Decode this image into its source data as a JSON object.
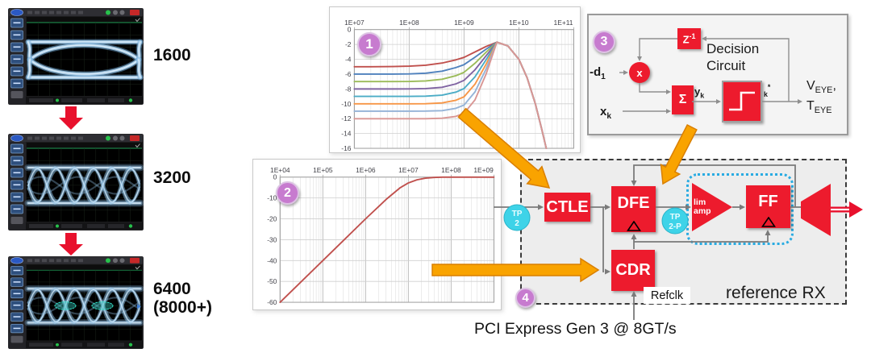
{
  "caption": "PCI Express Gen 3 @ 8GT/s",
  "scopes": [
    {
      "label_lines": [
        "1600"
      ],
      "eye": "open"
    },
    {
      "label_lines": [
        "3200"
      ],
      "eye": "dense"
    },
    {
      "label_lines": [
        "6400",
        "(8000+)"
      ],
      "eye": "dense-marked"
    }
  ],
  "badges": {
    "b1": "1",
    "b2": "2",
    "b3": "3",
    "b4": "4"
  },
  "chart_data": [
    {
      "id": "ctle-frequency-response",
      "type": "line",
      "x_scale": "log",
      "x_tick_labels": [
        "1E+07",
        "1E+08",
        "1E+09",
        "1E+10",
        "1E+11"
      ],
      "x_tick_log10": [
        7,
        8,
        9,
        10,
        11
      ],
      "xlim_log10": [
        7,
        11
      ],
      "y_ticks": [
        0,
        -2,
        -4,
        -6,
        -8,
        -10,
        -12,
        -14,
        -16
      ],
      "ylim": [
        -16,
        0
      ],
      "grid": "log-minor",
      "legend": "none",
      "x_log10": [
        7.0,
        7.3,
        7.7,
        8.0,
        8.3,
        8.6,
        8.85,
        9.0,
        9.2,
        9.4,
        9.6,
        9.8,
        10.0,
        10.15,
        10.3,
        10.42,
        10.5
      ],
      "series": [
        {
          "name": "dc_gain_-5dB",
          "color": "#c0504d",
          "values": [
            -5,
            -5,
            -4.98,
            -4.93,
            -4.8,
            -4.51,
            -4.08,
            -3.75,
            -3.02,
            -2.29,
            -1.7,
            -2.2,
            -4,
            -6.5,
            -10,
            -13.5,
            -16
          ]
        },
        {
          "name": "dc_gain_-6dB",
          "color": "#4f81bd",
          "values": [
            -6,
            -6,
            -5.99,
            -5.97,
            -5.87,
            -5.6,
            -5.12,
            -4.72,
            -3.73,
            -2.65,
            -1.7,
            -2.2,
            -4,
            -6.5,
            -10,
            -13.5,
            -16
          ]
        },
        {
          "name": "dc_gain_-7dB",
          "color": "#9bbb59",
          "values": [
            -7,
            -7,
            -7,
            -6.99,
            -6.92,
            -6.69,
            -6.22,
            -5.76,
            -4.54,
            -3.07,
            -1.7,
            -2.2,
            -4,
            -6.5,
            -10,
            -13.5,
            -16
          ]
        },
        {
          "name": "dc_gain_-8dB",
          "color": "#8064a2",
          "values": [
            -8,
            -8,
            -8,
            -7.99,
            -7.95,
            -7.77,
            -7.32,
            -6.84,
            -5.42,
            -3.55,
            -1.7,
            -2.2,
            -4,
            -6.5,
            -10,
            -13.5,
            -16
          ]
        },
        {
          "name": "dc_gain_-9dB",
          "color": "#4bacc6",
          "values": [
            -9,
            -9,
            -9,
            -9,
            -8.97,
            -8.84,
            -8.43,
            -7.95,
            -6.37,
            -4.09,
            -1.7,
            -2.2,
            -4,
            -6.5,
            -10,
            -13.5,
            -16
          ]
        },
        {
          "name": "dc_gain_-10dB",
          "color": "#f79646",
          "values": [
            -10,
            -10,
            -10,
            -10,
            -9.99,
            -9.88,
            -9.53,
            -9.06,
            -7.37,
            -4.69,
            -1.7,
            -2.2,
            -4,
            -6.5,
            -10,
            -13.5,
            -16
          ]
        },
        {
          "name": "dc_gain_-11dB",
          "color": "#95b3d7",
          "values": [
            -11,
            -11,
            -11,
            -11,
            -10.99,
            -10.92,
            -10.61,
            -10.17,
            -8.41,
            -5.34,
            -1.7,
            -2.2,
            -4,
            -6.5,
            -10,
            -13.5,
            -16
          ]
        },
        {
          "name": "dc_gain_-12dB",
          "color": "#d99694",
          "values": [
            -12,
            -12,
            -12,
            -12,
            -12,
            -11.94,
            -11.69,
            -11.28,
            -9.48,
            -6.04,
            -1.7,
            -2.2,
            -4,
            -6.5,
            -10,
            -13.5,
            -16
          ]
        }
      ]
    },
    {
      "id": "cdr-loop-response",
      "type": "line",
      "x_scale": "log",
      "x_tick_labels": [
        "1E+04",
        "1E+05",
        "1E+06",
        "1E+07",
        "1E+08",
        "1E+09"
      ],
      "x_tick_log10": [
        4,
        5,
        6,
        7,
        8,
        9
      ],
      "xlim_log10": [
        4,
        9
      ],
      "y_ticks": [
        0,
        -10,
        -20,
        -30,
        -40,
        -50,
        -60
      ],
      "ylim": [
        -60,
        0
      ],
      "grid": "log-minor",
      "legend": "none",
      "x_log10": [
        4.0,
        4.5,
        5.0,
        5.5,
        6.0,
        6.5,
        6.8,
        7.0,
        7.2,
        7.4,
        7.6,
        7.8,
        8.0,
        8.5,
        9.0
      ],
      "series": [
        {
          "name": "highpass_response",
          "color": "#c0504d",
          "values": [
            -60,
            -50,
            -40,
            -30,
            -20,
            -10.3,
            -5.2,
            -2.8,
            -1.3,
            -0.5,
            -0.15,
            -0.05,
            0,
            0,
            0
          ]
        }
      ]
    }
  ],
  "decision_panel": {
    "badge": "3",
    "title_lines": [
      "Decision",
      "Circuit"
    ],
    "z_block": {
      "base": "Z",
      "sup": "-1"
    },
    "mult_label": "x",
    "sum_label": "Σ",
    "d1_label": {
      "base": "-d",
      "sub": "1"
    },
    "xk_label": {
      "base": "x",
      "sub": "k"
    },
    "yk_label": {
      "base": "y",
      "sub": "k"
    },
    "out_label": {
      "sub": "k",
      "sup": "*"
    },
    "eye_label_1": {
      "base": "V",
      "sub": "EYE",
      "suffix": ","
    },
    "eye_label_2": {
      "base": "T",
      "sub": "EYE",
      "suffix": ""
    }
  },
  "rx": {
    "badge": "4",
    "title": "reference RX",
    "blocks": {
      "ctle": "CTLE",
      "dfe": "DFE",
      "cdr": "CDR",
      "limamp_lines": [
        "lim",
        "amp"
      ],
      "ff": "FF"
    },
    "tp2_lines": [
      "TP",
      "2"
    ],
    "tp2p_lines": [
      "TP",
      "2-P"
    ],
    "refclk": "Refclk"
  },
  "icons": {
    "red-down-arrow": "solid red arrow, flow between scope captures",
    "orange-annotation-arrow": "orange callout arrow linking charts/panel to RX blocks",
    "clock-triangle": "triangle clock input symbol on DFE/FF",
    "slicer-step": "white step/sign glyph inside decision slicer block",
    "double-line-output-arrow": "red double-line arrow at RX output"
  },
  "colors": {
    "block_red": "#ed1b2d",
    "line_gray": "#7a7a7a",
    "orange_arrow": "#f9a300",
    "orange_arrow_border": "#d97f00",
    "badge_pink": "#c77bcf",
    "tp_cyan": "#3ed3e8",
    "dotted_box_blue": "#29abe2",
    "eye_trace_blue": "#a5cdea",
    "scope_teal_marker": "#35e0c8"
  }
}
